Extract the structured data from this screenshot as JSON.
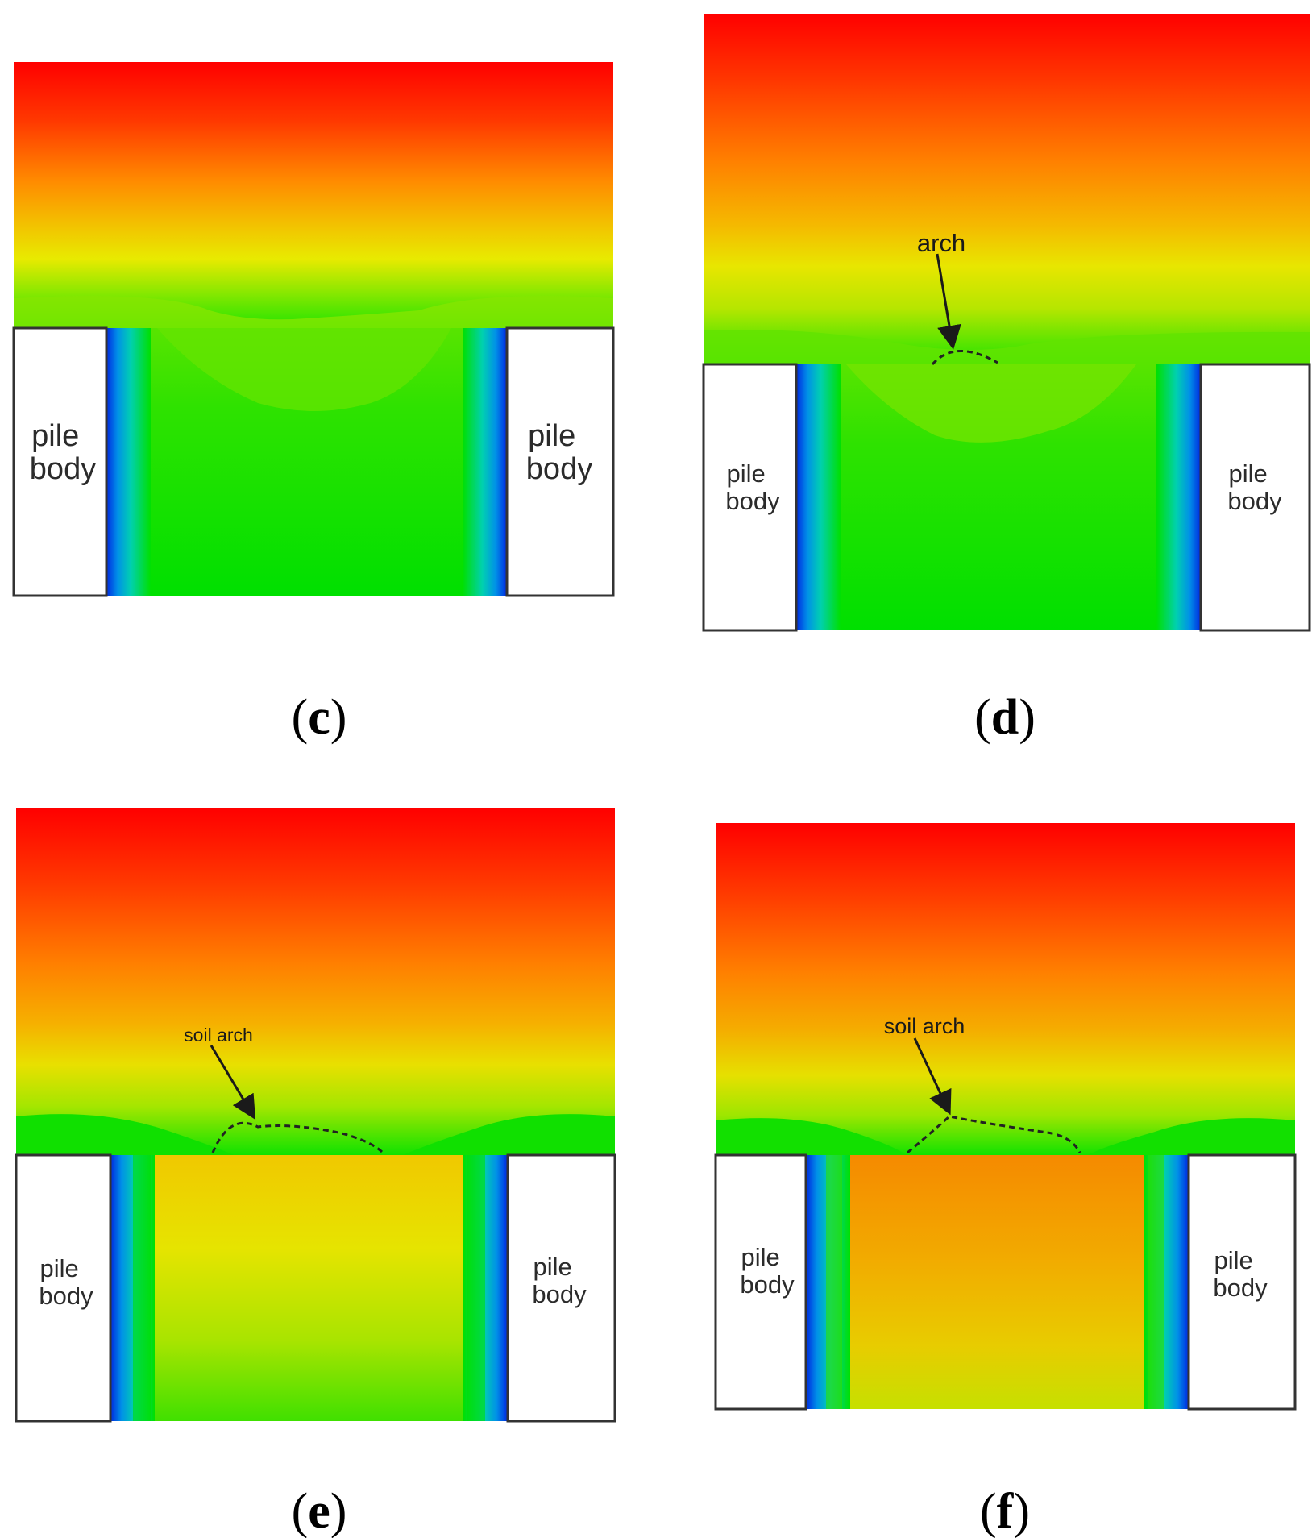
{
  "figure": {
    "panels": [
      {
        "id": "c",
        "caption_open": "(",
        "caption_letter": "c",
        "caption_close": ")",
        "left_pile": [
          "pile",
          "body"
        ],
        "right_pile": [
          "pile",
          "body"
        ],
        "annotation": ""
      },
      {
        "id": "d",
        "caption_open": "(",
        "caption_letter": "d",
        "caption_close": ")",
        "left_pile": [
          "pile",
          "body"
        ],
        "right_pile": [
          "pile",
          "body"
        ],
        "annotation": "arch"
      },
      {
        "id": "e",
        "caption_open": "(",
        "caption_letter": "e",
        "caption_close": ")",
        "left_pile": [
          "pile",
          "body"
        ],
        "right_pile": [
          "pile",
          "body"
        ],
        "annotation": "soil arch"
      },
      {
        "id": "f",
        "caption_open": "(",
        "caption_letter": "f",
        "caption_close": ")",
        "left_pile": [
          "pile",
          "body"
        ],
        "right_pile": [
          "pile",
          "body"
        ],
        "annotation": "soil arch"
      }
    ],
    "colors": {
      "red": "#ff0000",
      "orange": "#ff8c00",
      "yellow": "#e6e600",
      "green": "#00e000",
      "cyan": "#00c8c8",
      "blue": "#0030e0",
      "pile_fill": "#ffffff",
      "outline": "#333333"
    }
  }
}
